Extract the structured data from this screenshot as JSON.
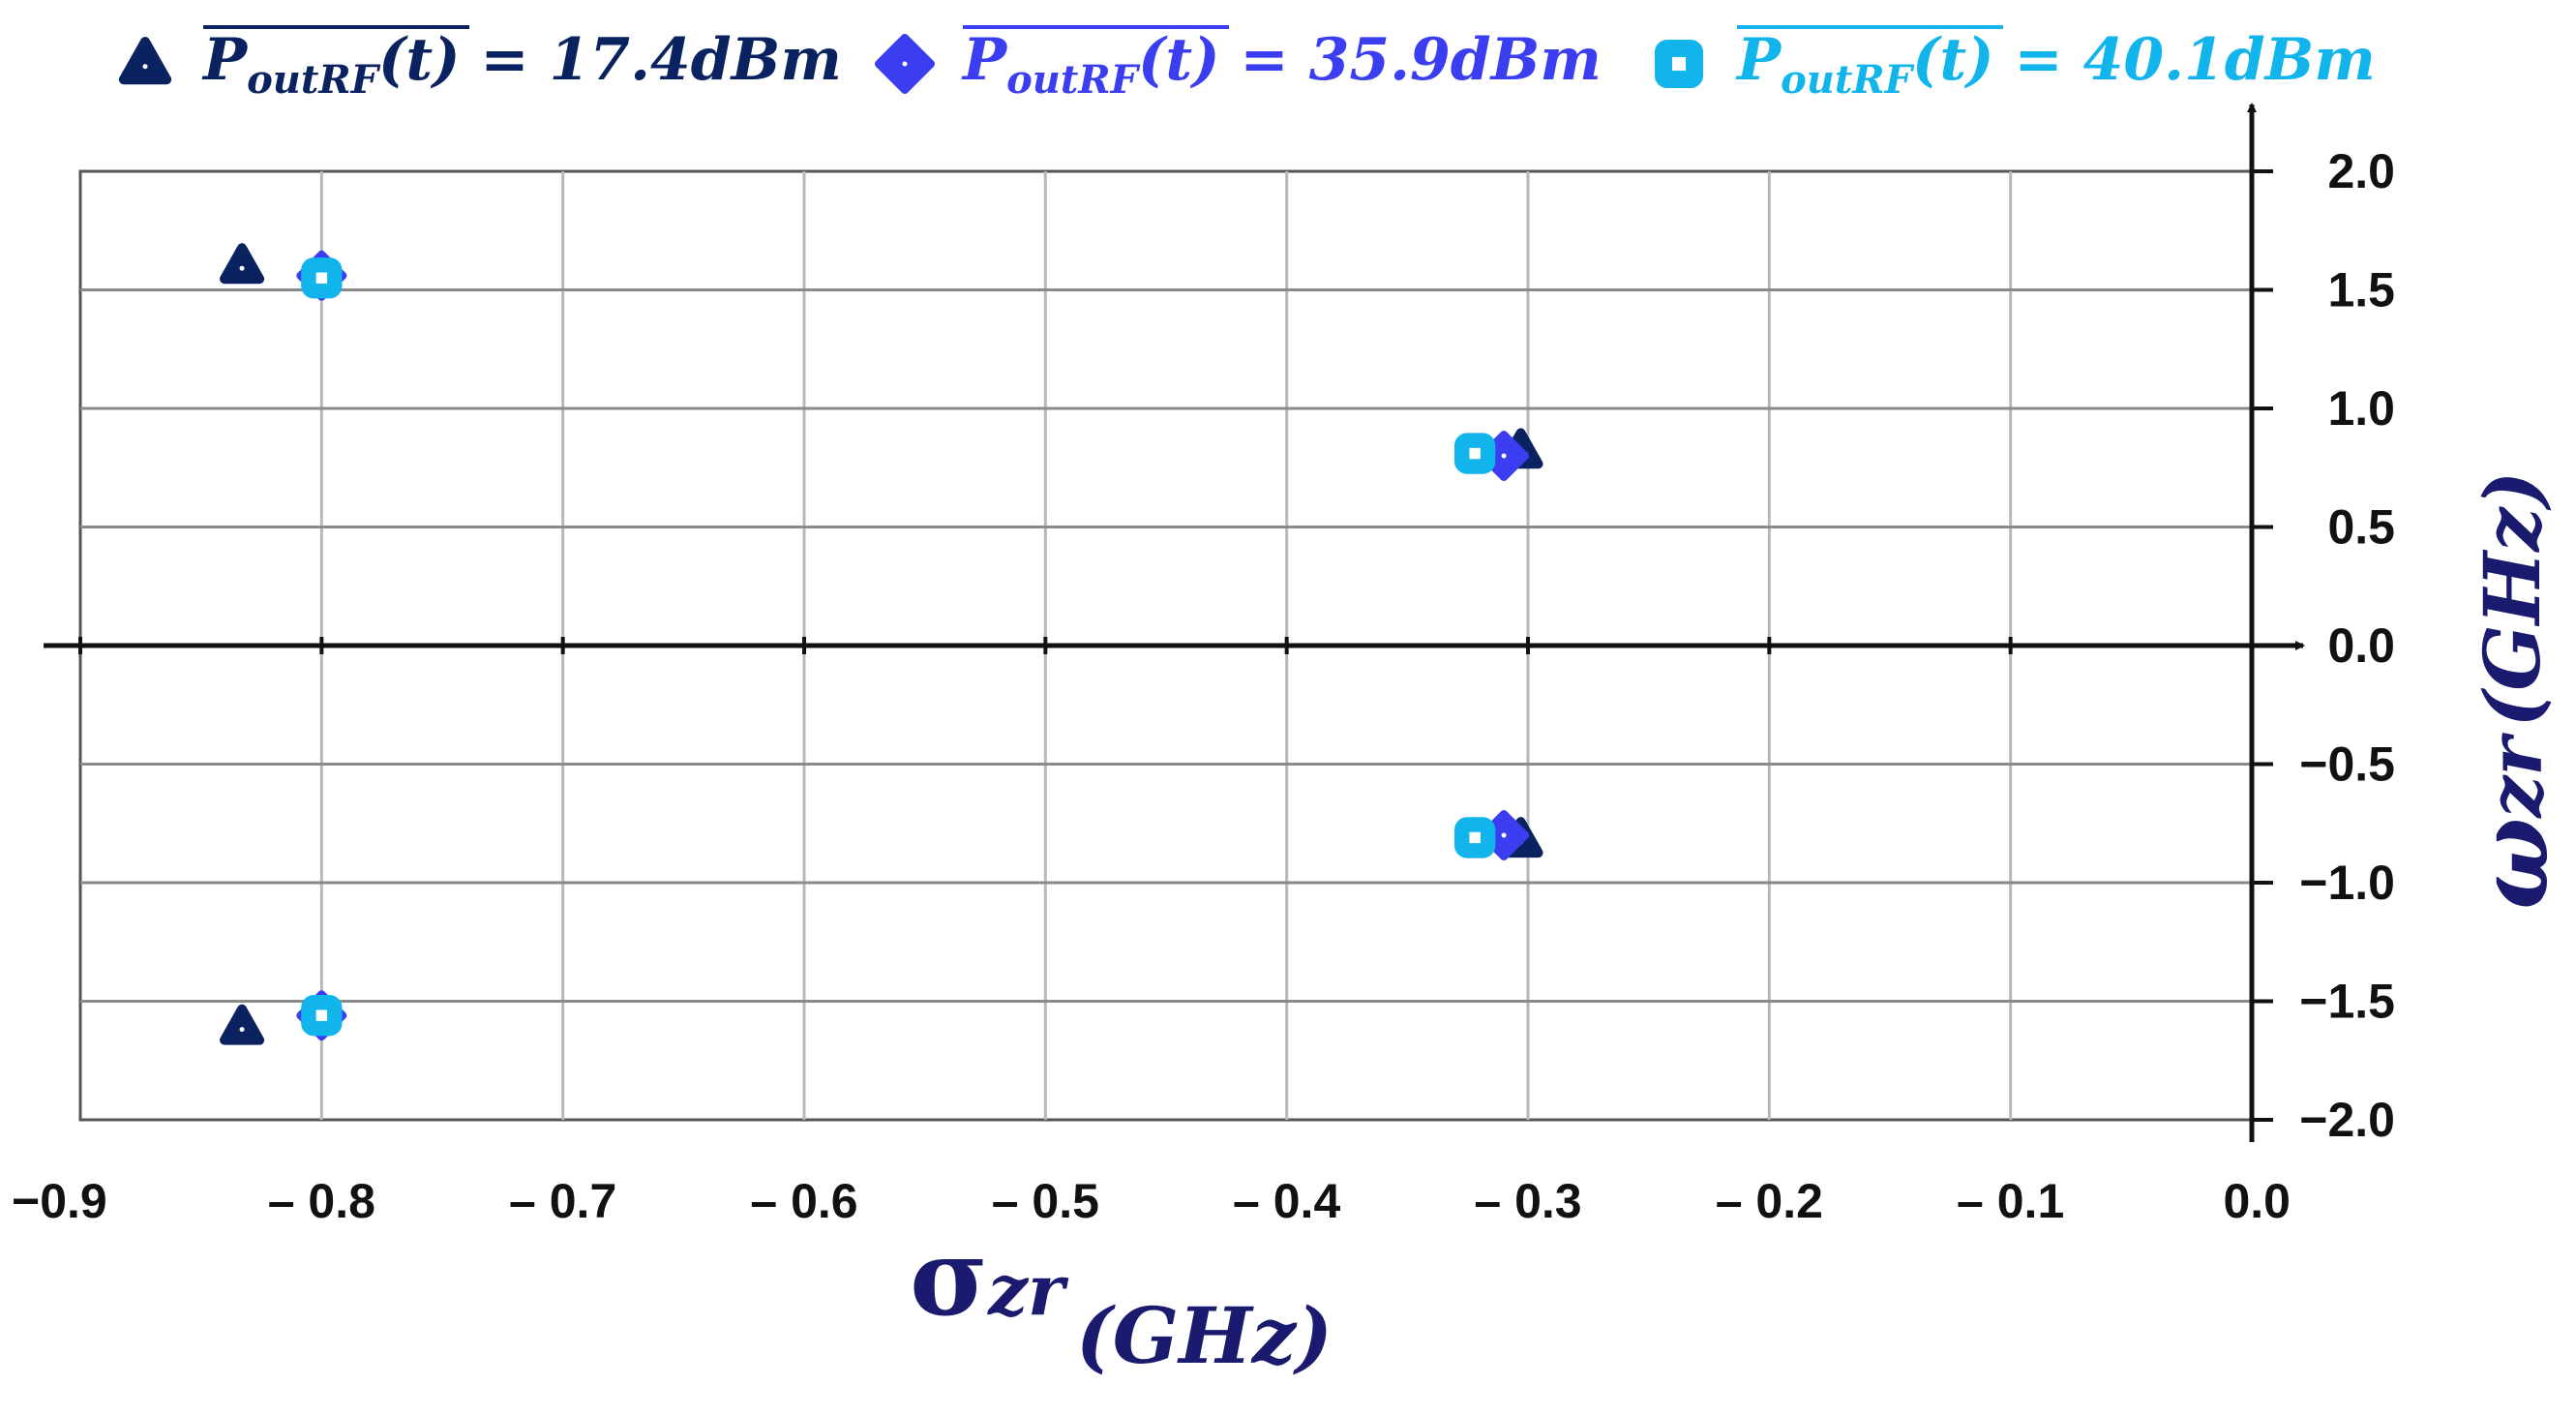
{
  "chart_data": {
    "type": "scatter",
    "xlabel": {
      "symbol": "σ",
      "subscript": "zr",
      "unit": "(GHz)"
    },
    "ylabel": {
      "symbol": "ω",
      "subscript": "zr",
      "unit": "(GHz)"
    },
    "xlim": [
      -0.9,
      0.0
    ],
    "ylim": [
      -2.0,
      2.0
    ],
    "x_ticks": [
      -0.9,
      -0.8,
      -0.7,
      -0.6,
      -0.5,
      -0.4,
      -0.3,
      -0.2,
      -0.1,
      0.0
    ],
    "x_tick_labels": [
      "−0.9",
      "– 0.8",
      "– 0.7",
      "– 0.6",
      "– 0.5",
      "– 0.4",
      "– 0.3",
      "– 0.2",
      "– 0.1",
      "0.0"
    ],
    "y_ticks": [
      2.0,
      1.5,
      1.0,
      0.5,
      0.0,
      -0.5,
      -1.0,
      -1.5,
      -2.0
    ],
    "y_tick_labels": [
      "2.0",
      "1.5",
      "1.0",
      "0.5",
      "0.0",
      "−0.5",
      "−1.0",
      "−1.5",
      "−2.0"
    ],
    "grid": true,
    "legend_position": "top",
    "series": [
      {
        "name": "P_outRF(t) = 17.4dBm",
        "legend": {
          "p": "P",
          "sub": "outRF",
          "arg": "(t)",
          "value": " = 17.4dBm"
        },
        "marker": "triangle",
        "color": "#0b2260",
        "x": [
          -0.833,
          -0.833,
          -0.303,
          -0.303
        ],
        "y": [
          1.6,
          -1.61,
          0.82,
          -0.82
        ]
      },
      {
        "name": "P_outRF(t) = 35.9dBm",
        "legend": {
          "p": "P",
          "sub": "outRF",
          "arg": "(t)",
          "value": " = 35.9dBm"
        },
        "marker": "diamond",
        "color": "#3a3ef0",
        "x": [
          -0.8,
          -0.8,
          -0.31,
          -0.31
        ],
        "y": [
          1.56,
          -1.56,
          0.8,
          -0.8
        ]
      },
      {
        "name": "P_outRF(t) = 40.1dBm",
        "legend": {
          "p": "P",
          "sub": "outRF",
          "arg": "(t)",
          "value": " = 40.1dBm"
        },
        "marker": "square",
        "color": "#12b4ec",
        "x": [
          -0.8,
          -0.8,
          -0.322,
          -0.322
        ],
        "y": [
          1.55,
          -1.56,
          0.81,
          -0.81
        ]
      }
    ]
  }
}
